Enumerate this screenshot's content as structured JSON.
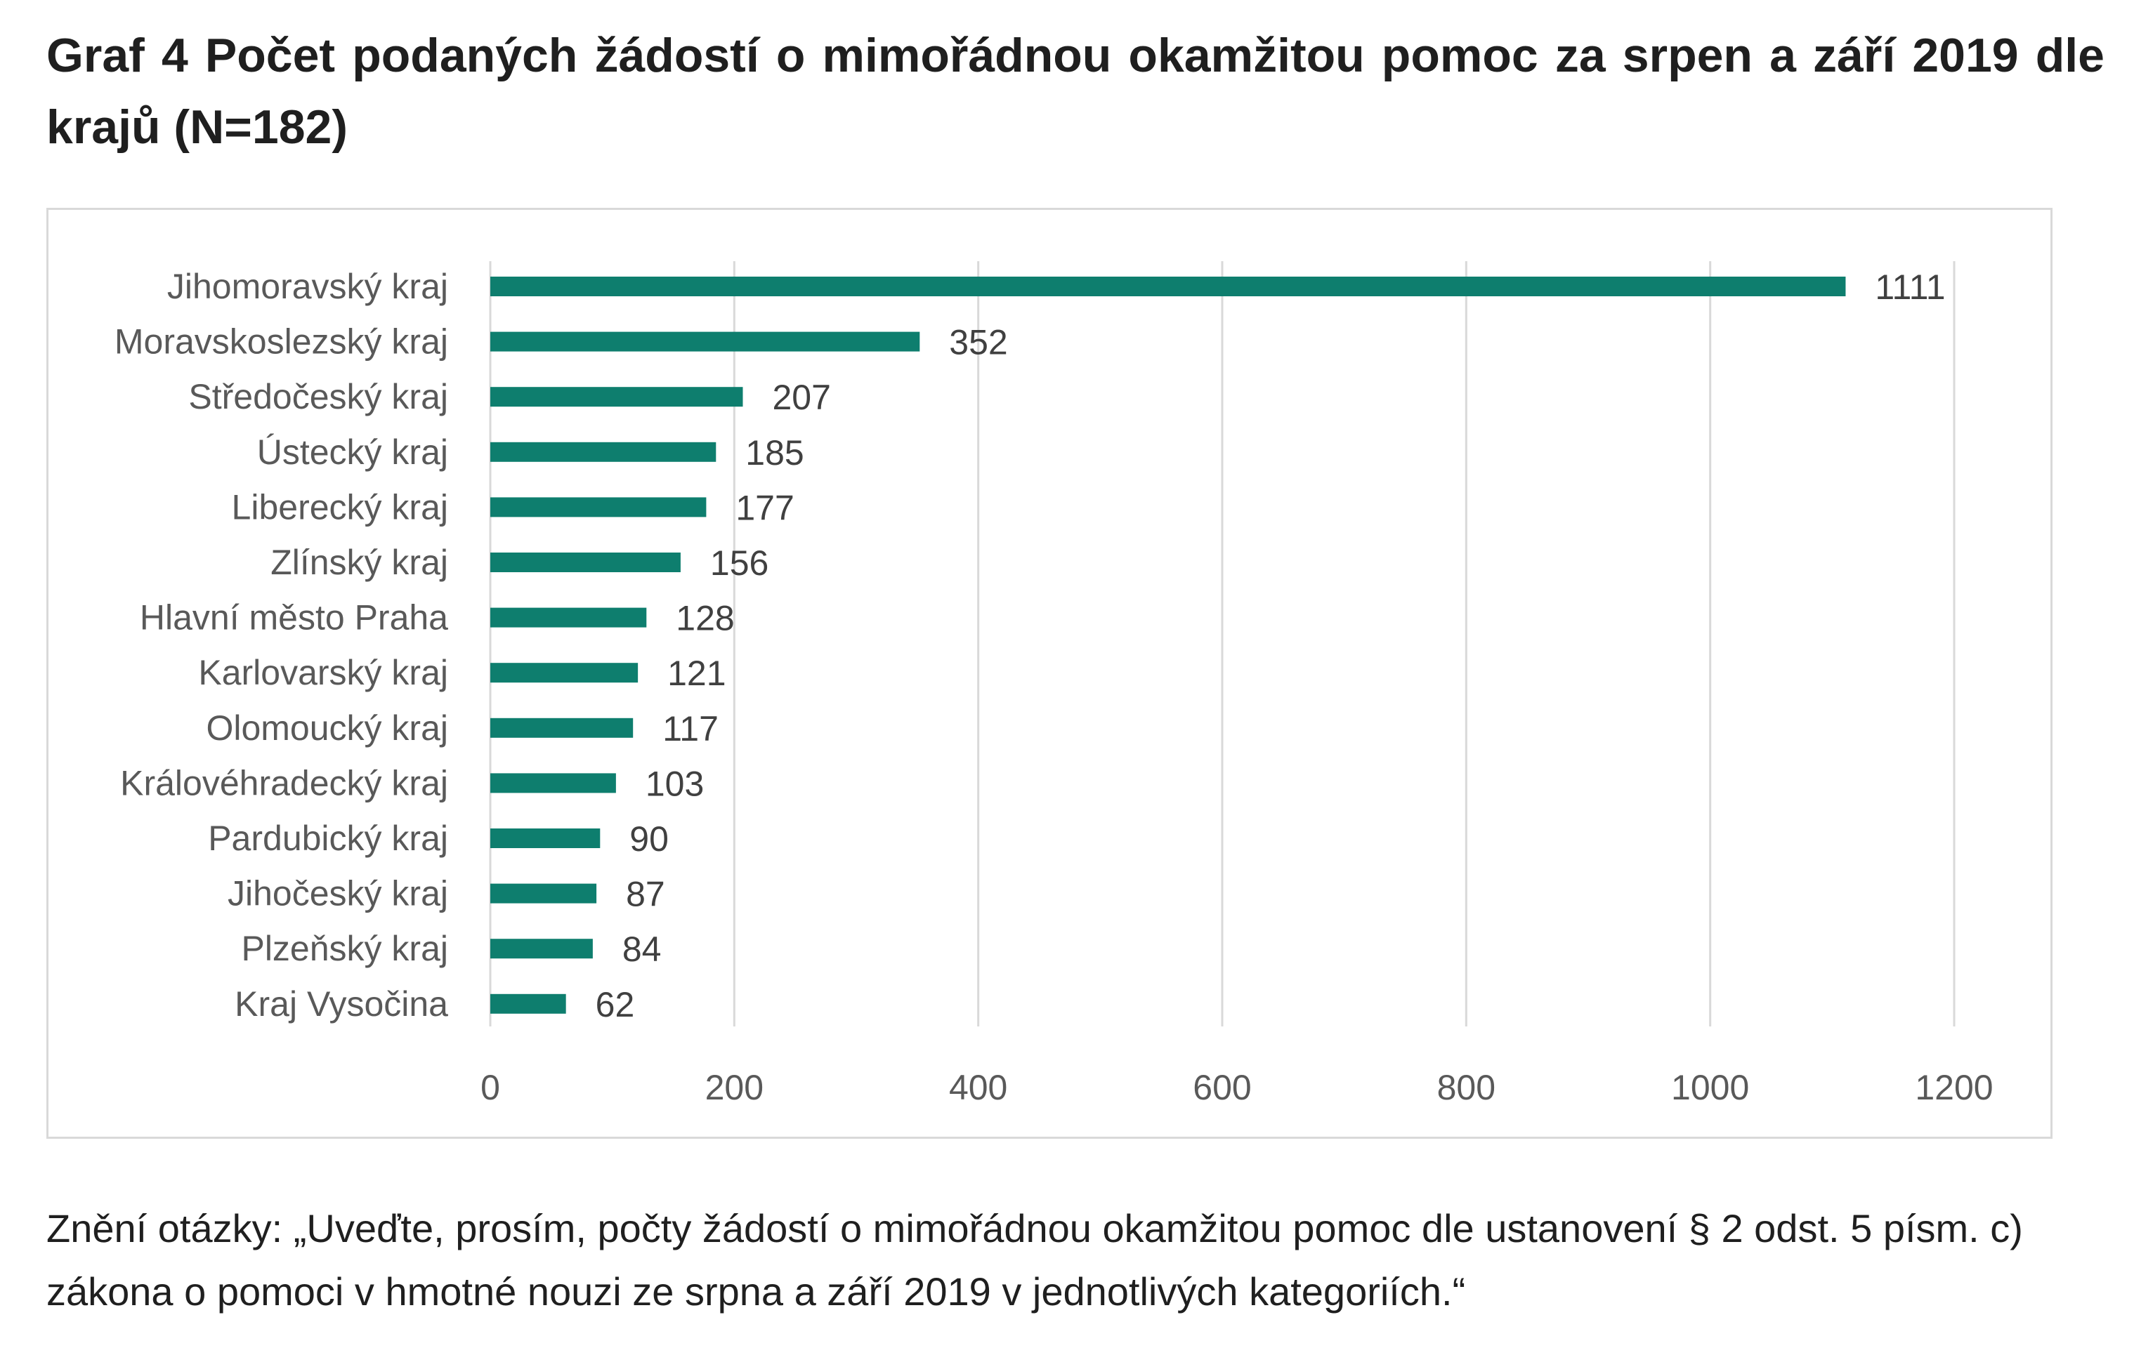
{
  "chart_data": {
    "type": "bar",
    "orientation": "horizontal",
    "title": "Graf 4 Počet podaných žádostí o mimořádnou okamžitou pomoc za srpen a září 2019 dle krajů (N=182)",
    "xlabel": "",
    "ylabel": "",
    "categories": [
      "Jihomoravský kraj",
      "Moravskoslezský kraj",
      "Středočeský kraj",
      "Ústecký kraj",
      "Liberecký kraj",
      "Zlínský kraj",
      "Hlavní město Praha",
      "Karlovarský kraj",
      "Olomoucký kraj",
      "Královéhradecký kraj",
      "Pardubický kraj",
      "Jihočeský kraj",
      "Plzeňský kraj",
      "Kraj Vysočina"
    ],
    "values": [
      1111,
      352,
      207,
      185,
      177,
      156,
      128,
      121,
      117,
      103,
      90,
      87,
      84,
      62
    ],
    "xlim": [
      0,
      1200
    ],
    "xticks": [
      0,
      200,
      400,
      600,
      800,
      1000,
      1200
    ],
    "grid": "vertical",
    "legend": "none",
    "data_labels": true,
    "bar_color": "#0e7e6e",
    "gridline_color": "#d9d9d9",
    "tick_label_color": "#595959"
  },
  "footnote": "Znění otázky: „Uveďte, prosím, počty žádostí o mimořádnou okamžitou pomoc dle ustanovení § 2 odst. 5 písm. c) zákona o pomoci v hmotné nouzi ze srpna a září 2019 v jednotlivých kategoriích.“"
}
